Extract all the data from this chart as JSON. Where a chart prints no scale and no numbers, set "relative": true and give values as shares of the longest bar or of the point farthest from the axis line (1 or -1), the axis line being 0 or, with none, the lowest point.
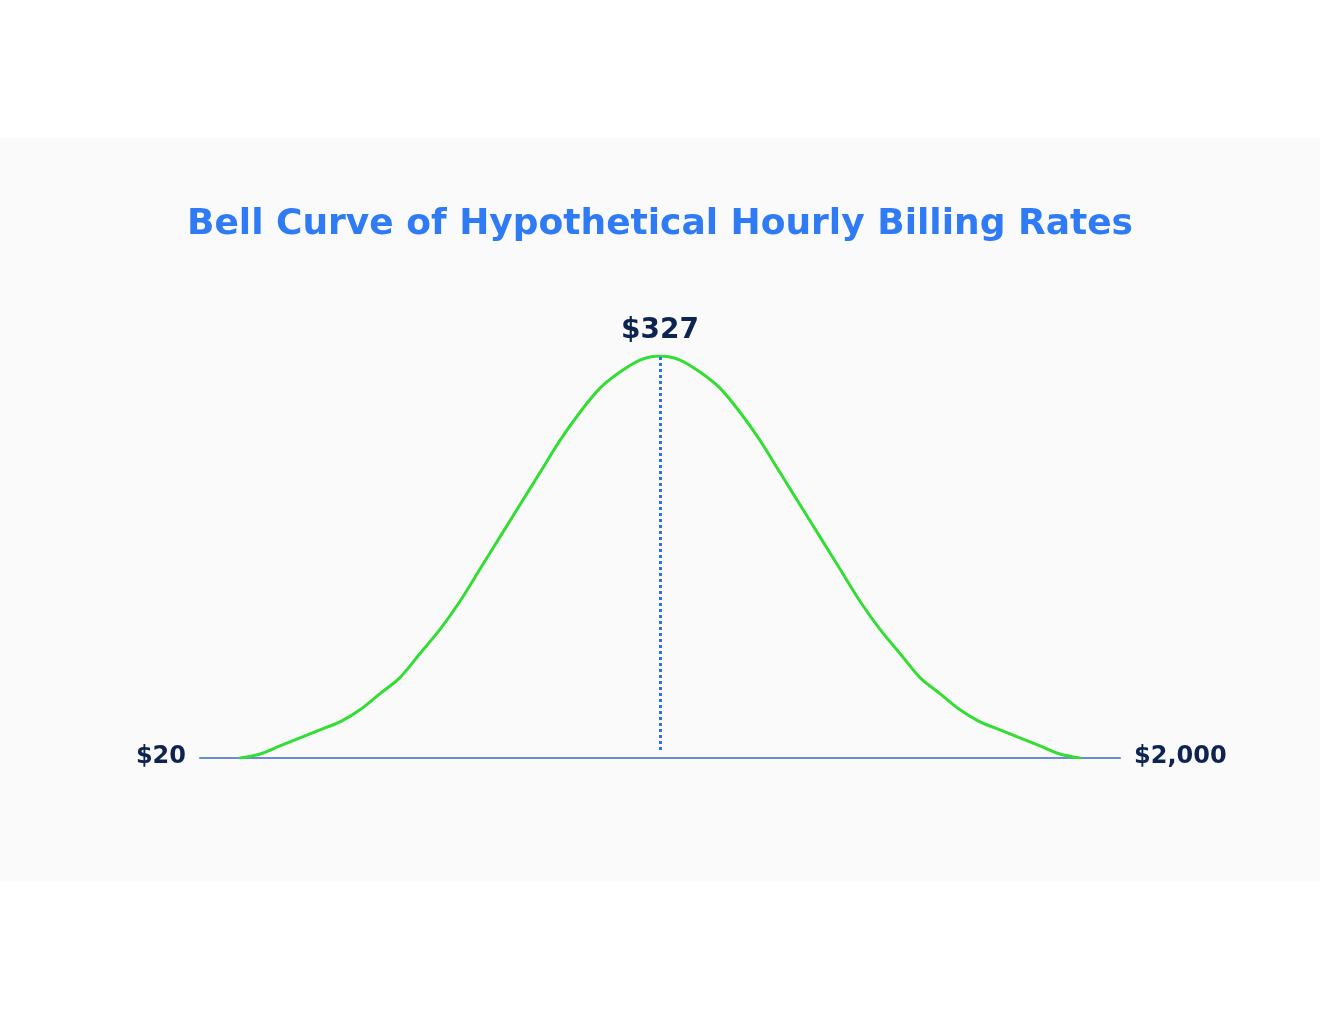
{
  "chart_data": {
    "type": "line",
    "title": "Bell Curve of Hypothetical Hourly Billing Rates",
    "relative": true,
    "marker": "none",
    "line_style": "solid",
    "categories": [
      null,
      null,
      null,
      null,
      null,
      null,
      null,
      null,
      null,
      null,
      null,
      null,
      null,
      null,
      null,
      null,
      null,
      null,
      null,
      null,
      null,
      null,
      null,
      null,
      null,
      null,
      null,
      null,
      null,
      null,
      null,
      null,
      null,
      null,
      null,
      null,
      null,
      null,
      null,
      null,
      null,
      null,
      null,
      null,
      null,
      null,
      null
    ],
    "series": [
      {
        "color": "#33dd33",
        "values": [
          null,
          null,
          0,
          0.01,
          0.03,
          0.05,
          0.07,
          0.09,
          0.12,
          0.16,
          0.2,
          0.26,
          0.32,
          0.39,
          0.47,
          0.55,
          0.63,
          0.71,
          0.79,
          0.86,
          0.92,
          0.96,
          0.99,
          1,
          0.99,
          0.96,
          0.92,
          0.86,
          0.79,
          0.71,
          0.63,
          0.55,
          0.47,
          0.39,
          0.32,
          0.26,
          0.2,
          0.16,
          0.12,
          0.09,
          0.07,
          0.05,
          0.03,
          0.01,
          0,
          null,
          null
        ]
      }
    ],
    "ref_lines": [
      {
        "axis": "x",
        "label": "$327",
        "color": "#2f6fef",
        "line_style": "dotted"
      }
    ],
    "annotations": [
      "$20",
      "$2,000"
    ]
  }
}
